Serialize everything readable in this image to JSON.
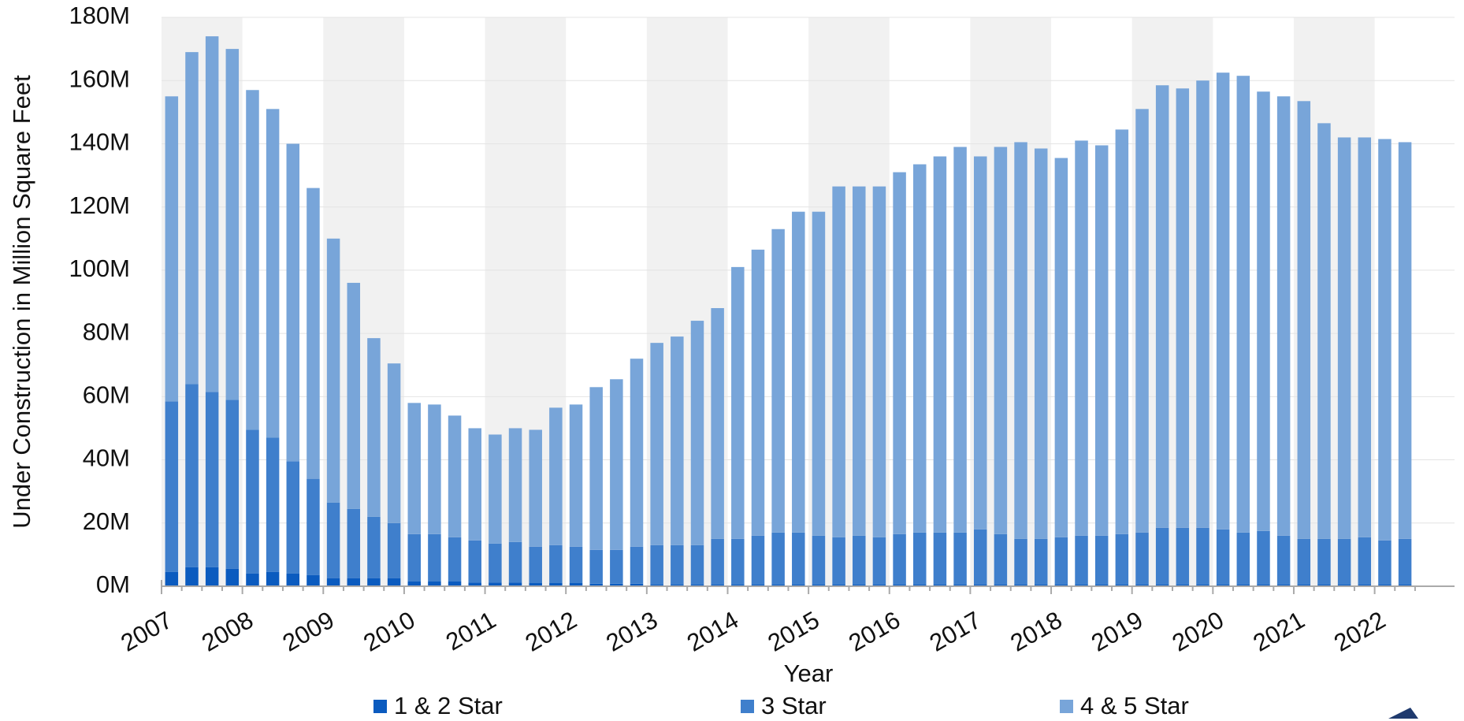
{
  "chart_data": {
    "type": "stacked_bar",
    "x_label": "Year",
    "y_label": "Under Construction in Million Square Feet",
    "categories": [
      "2007",
      null,
      null,
      null,
      "2008",
      null,
      null,
      null,
      "2009",
      null,
      null,
      null,
      "2010",
      null,
      null,
      null,
      "2011",
      null,
      null,
      null,
      "2012",
      null,
      null,
      null,
      "2013",
      null,
      null,
      null,
      "2014",
      null,
      null,
      null,
      "2015",
      null,
      null,
      null,
      "2016",
      null,
      null,
      null,
      "2017",
      null,
      null,
      null,
      "2018",
      null,
      null,
      null,
      "2019",
      null,
      null,
      null,
      "2020",
      null,
      null,
      null,
      "2021",
      null,
      null,
      null,
      "2022",
      null
    ],
    "series": [
      {
        "name": "1 & 2 Star",
        "color": "#0b5bbf",
        "values": [
          4.5,
          6,
          6,
          5.5,
          4,
          4.5,
          4,
          3.5,
          2.5,
          2.5,
          2.5,
          2.5,
          1.5,
          1.5,
          1.5,
          1.2,
          1.2,
          1.2,
          1,
          1,
          1,
          0.8,
          0.8,
          0.8,
          0.5,
          0.5,
          0.5,
          0.5,
          0.5,
          0.5,
          0.5,
          0.5,
          0.5,
          0.5,
          0.5,
          0.5,
          0.5,
          0.5,
          0.5,
          0.5,
          0.5,
          0.5,
          0.5,
          0.5,
          0.5,
          0.5,
          0.5,
          0.5,
          0.5,
          0.5,
          0.5,
          0.5,
          0.5,
          0.5,
          0.5,
          0.5,
          0.5,
          0.5,
          0.5,
          0.5,
          0.5,
          0.5
        ]
      },
      {
        "name": "3 Star",
        "color": "#3f7fcc",
        "values": [
          54,
          58,
          55.5,
          53.5,
          45.5,
          42.5,
          35.5,
          30.5,
          24,
          22,
          19.5,
          17.5,
          15,
          15,
          14,
          13.3,
          12.3,
          12.8,
          11.5,
          12,
          11.5,
          10.7,
          10.7,
          11.7,
          12.5,
          12.5,
          12.5,
          14.5,
          14.5,
          15.5,
          16.5,
          16.5,
          15.5,
          15,
          15.5,
          15,
          16,
          16.5,
          16.5,
          16.5,
          17.5,
          16,
          14.5,
          14.5,
          15,
          15.5,
          15.5,
          16,
          16.5,
          18,
          18,
          18,
          17.5,
          16.5,
          17,
          15.5,
          14.5,
          14.5,
          14.5,
          15,
          14,
          14.5
        ]
      },
      {
        "name": "4 & 5 Star",
        "color": "#78a5d9",
        "values": [
          96.5,
          105,
          112.5,
          111,
          107.5,
          104,
          100.5,
          92,
          83.5,
          71.5,
          56.5,
          50.5,
          41.5,
          41,
          38.5,
          35.5,
          34.5,
          36,
          37,
          43.5,
          45,
          51.5,
          54,
          59.5,
          64,
          66,
          71,
          73,
          86,
          90.5,
          96,
          101.5,
          102.5,
          111,
          110.5,
          111,
          114.5,
          116.5,
          119,
          122,
          118,
          122.5,
          125.5,
          123.5,
          120,
          125,
          123.5,
          128,
          134,
          140,
          139,
          141.5,
          144.5,
          144.5,
          139,
          139,
          138.5,
          131.5,
          127,
          126.5,
          127,
          125.5
        ]
      }
    ],
    "ylim": [
      0,
      180
    ],
    "yticks": [
      {
        "value": 0,
        "label": "0M"
      },
      {
        "value": 20,
        "label": "20M"
      },
      {
        "value": 40,
        "label": "40M"
      },
      {
        "value": 60,
        "label": "60M"
      },
      {
        "value": 80,
        "label": "80M"
      },
      {
        "value": 100,
        "label": "100M"
      },
      {
        "value": 120,
        "label": "120M"
      },
      {
        "value": 140,
        "label": "140M"
      },
      {
        "value": 160,
        "label": "160M"
      },
      {
        "value": 180,
        "label": "180M"
      }
    ],
    "grid": true,
    "legend": "bottom"
  }
}
